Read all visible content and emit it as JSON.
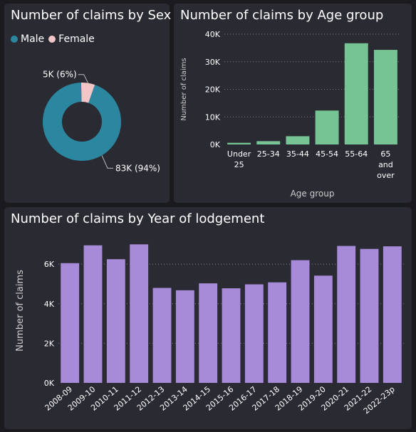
{
  "chart_data": [
    {
      "type": "pie",
      "title": "Number of claims by Sex",
      "donut": true,
      "legend_position": "top-left",
      "slices": [
        {
          "name": "Male",
          "value": 83000,
          "label": "83K (94%)",
          "color": "#2b869f"
        },
        {
          "name": "Female",
          "value": 5000,
          "label": "5K (6%)",
          "color": "#f2c6c6"
        }
      ]
    },
    {
      "type": "bar",
      "title": "Number of claims by Age group",
      "xlabel": "Age group",
      "ylabel": "Number of claims",
      "ylim": [
        0,
        40000
      ],
      "yticks": [
        0,
        10000,
        20000,
        30000,
        40000
      ],
      "ytick_labels": [
        "0K",
        "10K",
        "20K",
        "30K",
        "40K"
      ],
      "grid": true,
      "color": "#76c493",
      "categories": [
        [
          "Under",
          "25"
        ],
        [
          "25-34"
        ],
        [
          "35-44"
        ],
        [
          "45-54"
        ],
        [
          "55-64"
        ],
        [
          "65",
          "and",
          "over"
        ]
      ],
      "values": [
        600,
        1200,
        3000,
        12300,
        36700,
        34300
      ]
    },
    {
      "type": "bar",
      "title": "Number of claims by Year of lodgement",
      "xlabel": "",
      "ylabel": "Number of claims",
      "ylim": [
        0,
        7300
      ],
      "yticks": [
        0,
        2000,
        4000,
        6000
      ],
      "ytick_labels": [
        "0K",
        "2K",
        "4K",
        "6K"
      ],
      "grid": true,
      "color": "#a78bd9",
      "categories": [
        "2008-09",
        "2009-10",
        "2010-11",
        "2011-12",
        "2012-13",
        "2013-14",
        "2014-15",
        "2015-16",
        "2016-17",
        "2017-18",
        "2018-19",
        "2019-20",
        "2020-21",
        "2021-22",
        "2022-23p"
      ],
      "values": [
        6050,
        6950,
        6250,
        7000,
        4800,
        4680,
        5030,
        4780,
        4980,
        5080,
        6200,
        5420,
        6920,
        6770,
        6900
      ]
    }
  ]
}
